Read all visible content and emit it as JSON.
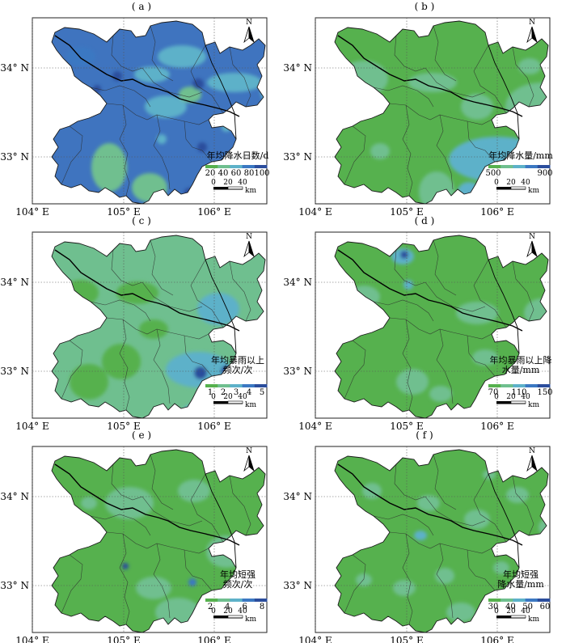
{
  "axes": {
    "lat_labels": [
      "34° N",
      "33° N"
    ],
    "lon_labels": [
      "104° E",
      "105° E",
      "106° E"
    ]
  },
  "north_label": "N",
  "scale": {
    "ticks": [
      "0",
      "20",
      "40"
    ],
    "unit": "km"
  },
  "panels": [
    {
      "label": "( a )",
      "legend_title": [
        "年均降水日数/d"
      ],
      "legend_ticks": [
        "20",
        "40",
        "60",
        "80",
        "100"
      ],
      "palette": [
        "#56b14e",
        "#6fbf8f",
        "#5db1c9",
        "#3b78c2",
        "#2b4d9c"
      ],
      "base": "#3f74bf",
      "blobs": [
        {
          "pos": [
            60,
            48
          ],
          "r": [
            18,
            12
          ],
          "c": 3
        },
        {
          "pos": [
            185,
            48
          ],
          "r": [
            30,
            14
          ],
          "c": 2
        },
        {
          "pos": [
            148,
            70
          ],
          "r": [
            22,
            10
          ],
          "c": 2
        },
        {
          "pos": [
            165,
            110
          ],
          "r": [
            26,
            14
          ],
          "c": 2
        },
        {
          "pos": [
            250,
            80
          ],
          "r": [
            34,
            12
          ],
          "c": 2
        },
        {
          "pos": [
            300,
            90
          ],
          "r": [
            18,
            20
          ],
          "c": 2
        },
        {
          "pos": [
            95,
            185
          ],
          "r": [
            22,
            30
          ],
          "c": 1
        },
        {
          "pos": [
            145,
            210
          ],
          "r": [
            22,
            18
          ],
          "c": 1
        },
        {
          "pos": [
            195,
            95
          ],
          "r": [
            14,
            10
          ],
          "c": 1
        },
        {
          "pos": [
            105,
            72
          ],
          "r": [
            6,
            6
          ],
          "c": 4
        },
        {
          "pos": [
            80,
            88
          ],
          "r": [
            5,
            5
          ],
          "c": 4
        },
        {
          "pos": [
            205,
            82
          ],
          "r": [
            7,
            7
          ],
          "c": 4
        },
        {
          "pos": [
            210,
            160
          ],
          "r": [
            6,
            6
          ],
          "c": 4
        },
        {
          "pos": [
            195,
            218
          ],
          "r": [
            8,
            8
          ],
          "c": 4
        },
        {
          "pos": [
            160,
            150
          ],
          "r": [
            6,
            6
          ],
          "c": 2
        },
        {
          "pos": [
            240,
            135
          ],
          "r": [
            6,
            6
          ],
          "c": 2
        }
      ]
    },
    {
      "label": "( b )",
      "legend_title": [
        "年均降水量/mm"
      ],
      "legend_ticks": [
        "500",
        "900"
      ],
      "palette": [
        "#56b14e",
        "#6fbf8f",
        "#5db1c9",
        "#3b78c2",
        "#2b4d9c"
      ],
      "base": "#56b14e",
      "blobs": [
        {
          "pos": [
            60,
            75
          ],
          "r": [
            30,
            22
          ],
          "c": 1
        },
        {
          "pos": [
            145,
            80
          ],
          "r": [
            30,
            12
          ],
          "c": 1
        },
        {
          "pos": [
            200,
            110
          ],
          "r": [
            20,
            16
          ],
          "c": 1
        },
        {
          "pos": [
            280,
            110
          ],
          "r": [
            45,
            30
          ],
          "c": 1
        },
        {
          "pos": [
            150,
            215
          ],
          "r": [
            22,
            25
          ],
          "c": 1
        },
        {
          "pos": [
            225,
            175
          ],
          "r": [
            60,
            28
          ],
          "c": 2
        },
        {
          "pos": [
            190,
            215
          ],
          "r": [
            14,
            12
          ],
          "c": 2
        },
        {
          "pos": [
            238,
            188
          ],
          "r": [
            14,
            12
          ],
          "c": 4
        },
        {
          "pos": [
            195,
            220
          ],
          "r": [
            5,
            5
          ],
          "c": 3
        },
        {
          "pos": [
            80,
            165
          ],
          "r": [
            12,
            10
          ],
          "c": 1
        },
        {
          "pos": [
            265,
            60
          ],
          "r": [
            14,
            10
          ],
          "c": 1
        }
      ]
    },
    {
      "label": "( c )",
      "legend_title": [
        "年均暴雨以上",
        "频次/次"
      ],
      "legend_ticks": [
        "1",
        "2",
        "3",
        "4",
        "5"
      ],
      "palette": [
        "#56b14e",
        "#6fbf8f",
        "#5db1c9",
        "#3b78c2",
        "#2b4d9c"
      ],
      "base": "#6fbf8f",
      "blobs": [
        {
          "pos": [
            60,
            75
          ],
          "r": [
            22,
            16
          ],
          "c": 0
        },
        {
          "pos": [
            130,
            75
          ],
          "r": [
            26,
            14
          ],
          "c": 0
        },
        {
          "pos": [
            110,
            160
          ],
          "r": [
            24,
            22
          ],
          "c": 0
        },
        {
          "pos": [
            70,
            185
          ],
          "r": [
            24,
            22
          ],
          "c": 0
        },
        {
          "pos": [
            150,
            120
          ],
          "r": [
            18,
            12
          ],
          "c": 0
        },
        {
          "pos": [
            230,
            95
          ],
          "r": [
            26,
            20
          ],
          "c": 2
        },
        {
          "pos": [
            205,
            170
          ],
          "r": [
            40,
            22
          ],
          "c": 2
        },
        {
          "pos": [
            208,
            174
          ],
          "r": [
            8,
            8
          ],
          "c": 4
        },
        {
          "pos": [
            240,
            172
          ],
          "r": [
            7,
            7
          ],
          "c": 4
        },
        {
          "pos": [
            295,
            80
          ],
          "r": [
            10,
            10
          ],
          "c": 2
        },
        {
          "pos": [
            195,
            220
          ],
          "r": [
            8,
            6
          ],
          "c": 2
        }
      ]
    },
    {
      "label": "( d )",
      "legend_title": [
        "年均暴雨以上降",
        "水量/mm"
      ],
      "legend_ticks": [
        "70",
        "110",
        "150"
      ],
      "palette": [
        "#56b14e",
        "#6fbf8f",
        "#5db1c9",
        "#3b78c2",
        "#2b4d9c"
      ],
      "base": "#56b14e",
      "blobs": [
        {
          "pos": [
            108,
            30
          ],
          "r": [
            14,
            10
          ],
          "c": 2
        },
        {
          "pos": [
            110,
            28
          ],
          "r": [
            5,
            5
          ],
          "c": 4
        },
        {
          "pos": [
            60,
            80
          ],
          "r": [
            20,
            14
          ],
          "c": 1
        },
        {
          "pos": [
            200,
            100
          ],
          "r": [
            26,
            14
          ],
          "c": 1
        },
        {
          "pos": [
            280,
            100
          ],
          "r": [
            22,
            18
          ],
          "c": 1
        },
        {
          "pos": [
            120,
            185
          ],
          "r": [
            20,
            16
          ],
          "c": 1
        },
        {
          "pos": [
            155,
            200
          ],
          "r": [
            14,
            10
          ],
          "c": 1
        },
        {
          "pos": [
            300,
            80
          ],
          "r": [
            8,
            8
          ],
          "c": 2
        },
        {
          "pos": [
            210,
            155
          ],
          "r": [
            16,
            10
          ],
          "c": 1
        },
        {
          "pos": [
            115,
            65
          ],
          "r": [
            6,
            6
          ],
          "c": 2
        }
      ]
    },
    {
      "label": "( e )",
      "legend_title": [
        "年均短强",
        "频次/次"
      ],
      "legend_ticks": [
        "2",
        "4",
        "6",
        "8"
      ],
      "palette": [
        "#56b14e",
        "#6fbf8f",
        "#5db1c9",
        "#3b78c2",
        "#2b4d9c"
      ],
      "base": "#56b14e",
      "blobs": [
        {
          "pos": [
            120,
            70
          ],
          "r": [
            30,
            20
          ],
          "c": 1
        },
        {
          "pos": [
            200,
            55
          ],
          "r": [
            20,
            14
          ],
          "c": 1
        },
        {
          "pos": [
            240,
            130
          ],
          "r": [
            25,
            20
          ],
          "c": 1
        },
        {
          "pos": [
            150,
            175
          ],
          "r": [
            22,
            14
          ],
          "c": 1
        },
        {
          "pos": [
            180,
            205
          ],
          "r": [
            28,
            18
          ],
          "c": 1
        },
        {
          "pos": [
            115,
            148
          ],
          "r": [
            4,
            4
          ],
          "c": 4
        },
        {
          "pos": [
            198,
            168
          ],
          "r": [
            5,
            5
          ],
          "c": 3
        },
        {
          "pos": [
            70,
            70
          ],
          "r": [
            10,
            8
          ],
          "c": 1
        }
      ]
    },
    {
      "label": "( f )",
      "legend_title": [
        "年均短强",
        "降水量/mm"
      ],
      "legend_ticks": [
        "30",
        "40",
        "50",
        "60"
      ],
      "palette": [
        "#56b14e",
        "#6fbf8f",
        "#5db1c9",
        "#3b78c2",
        "#2b4d9c"
      ],
      "base": "#56b14e",
      "blobs": [
        {
          "pos": [
            70,
            55
          ],
          "r": [
            12,
            10
          ],
          "c": 1
        },
        {
          "pos": [
            140,
            70
          ],
          "r": [
            14,
            10
          ],
          "c": 1
        },
        {
          "pos": [
            200,
            90
          ],
          "r": [
            16,
            12
          ],
          "c": 1
        },
        {
          "pos": [
            250,
            60
          ],
          "r": [
            14,
            10
          ],
          "c": 1
        },
        {
          "pos": [
            290,
            100
          ],
          "r": [
            14,
            12
          ],
          "c": 1
        },
        {
          "pos": [
            110,
            175
          ],
          "r": [
            14,
            10
          ],
          "c": 1
        },
        {
          "pos": [
            160,
            160
          ],
          "r": [
            12,
            10
          ],
          "c": 1
        },
        {
          "pos": [
            180,
            205
          ],
          "r": [
            18,
            12
          ],
          "c": 1
        },
        {
          "pos": [
            60,
            165
          ],
          "r": [
            10,
            8
          ],
          "c": 1
        },
        {
          "pos": [
            230,
            150
          ],
          "r": [
            10,
            8
          ],
          "c": 1
        },
        {
          "pos": [
            130,
            110
          ],
          "r": [
            8,
            6
          ],
          "c": 2
        },
        {
          "pos": [
            215,
            35
          ],
          "r": [
            8,
            6
          ],
          "c": 1
        }
      ]
    }
  ]
}
